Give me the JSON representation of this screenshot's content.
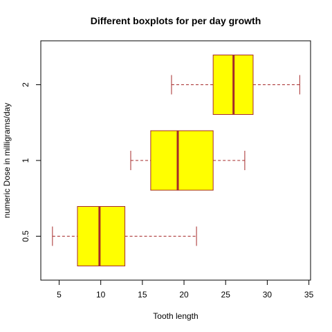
{
  "chart_data": {
    "type": "boxplot",
    "orientation": "horizontal",
    "title": "Different boxplots for per day growth",
    "xlabel": "Tooth length",
    "ylabel": "numeric Dose in milligrams/day",
    "xlim": [
      2.8,
      35.2
    ],
    "xticks": [
      5,
      10,
      15,
      20,
      25,
      30,
      35
    ],
    "categories": [
      "0.5",
      "1",
      "2"
    ],
    "boxes": [
      {
        "category": "0.5",
        "min": 4.2,
        "q1": 7.2,
        "median": 9.85,
        "q3": 12.9,
        "max": 21.5
      },
      {
        "category": "1",
        "min": 13.6,
        "q1": 16.0,
        "median": 19.25,
        "q3": 23.5,
        "max": 27.3
      },
      {
        "category": "2",
        "min": 18.5,
        "q1": 23.5,
        "median": 25.95,
        "q3": 28.3,
        "max": 33.9
      }
    ],
    "grid": false,
    "colors": {
      "box_fill": "#ffff00",
      "box_border": "#a52a2a",
      "whisker": "#a52a2a",
      "axis": "#000000"
    }
  }
}
